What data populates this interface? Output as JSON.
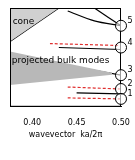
{
  "chart_data": {
    "type": "line",
    "x_label": "wavevector  ka/2π",
    "xlim": [
      0.375,
      0.5
    ],
    "xticks": [
      {
        "value": 0.4,
        "label": "0.40"
      },
      {
        "value": 0.45,
        "label": "0.45"
      },
      {
        "value": 0.5,
        "label": "0.50"
      }
    ],
    "ylim": [
      0,
      1
    ],
    "yticks": [],
    "tick_labels": "x",
    "grid": false,
    "series": [
      {
        "type": "area",
        "color": "#d0d0d0",
        "x": [
          0.375,
          0.43
        ],
        "values": [
          1,
          1
        ],
        "lower": [
          0.66,
          1
        ]
      },
      {
        "type": "area",
        "color": "#b8b8b8",
        "x": [
          0.375,
          0.49
        ],
        "values": [
          0.56,
          0.345
        ],
        "lower": [
          0.22,
          0.325
        ]
      },
      {
        "type": "line",
        "color": "#000000",
        "line_style": "solid",
        "x": [
          0.375,
          0.43
        ],
        "values": [
          0.66,
          1
        ]
      },
      {
        "type": "line",
        "color": "#000000",
        "line_style": "solid",
        "x": [
          0.44,
          0.47,
          0.5
        ],
        "values": [
          0.97,
          0.87,
          0.82
        ]
      },
      {
        "type": "line",
        "color": "#000000",
        "line_style": "solid",
        "x": [
          0.47,
          0.5
        ],
        "values": [
          1,
          0.82
        ]
      },
      {
        "type": "line",
        "color": "#e03030",
        "line_style": "dashed",
        "x": [
          0.42,
          0.5
        ],
        "values": [
          0.64,
          0.62
        ]
      },
      {
        "type": "line",
        "color": "#000000",
        "line_style": "solid",
        "x": [
          0.43,
          0.5
        ],
        "values": [
          0.6,
          0.58
        ]
      },
      {
        "type": "line",
        "color": "#000000",
        "line_style": "solid",
        "x": [
          0.44,
          0.5
        ],
        "values": [
          0.42,
          0.32
        ]
      },
      {
        "type": "line",
        "color": "#e03030",
        "line_style": "dashed",
        "x": [
          0.44,
          0.5
        ],
        "values": [
          0.2,
          0.18
        ]
      },
      {
        "type": "line",
        "color": "#000000",
        "line_style": "solid",
        "x": [
          0.45,
          0.5
        ],
        "values": [
          0.14,
          0.13
        ]
      },
      {
        "type": "line",
        "color": "#e03030",
        "line_style": "dashed",
        "x": [
          0.44,
          0.5
        ],
        "values": [
          0.09,
          0.08
        ]
      }
    ],
    "annotations": [
      {
        "text": "cone",
        "x": 0.378,
        "y": 0.86
      },
      {
        "text": "projected bulk modes",
        "x": 0.377,
        "y": 0.47
      }
    ],
    "circles": [
      {
        "label": "5",
        "x": 0.5,
        "y": 0.82
      },
      {
        "label": "4",
        "x": 0.5,
        "y": 0.6
      },
      {
        "label": "3",
        "x": 0.5,
        "y": 0.32
      },
      {
        "label": "2",
        "x": 0.5,
        "y": 0.18
      },
      {
        "label": "1",
        "x": 0.5,
        "y": 0.08
      }
    ]
  }
}
